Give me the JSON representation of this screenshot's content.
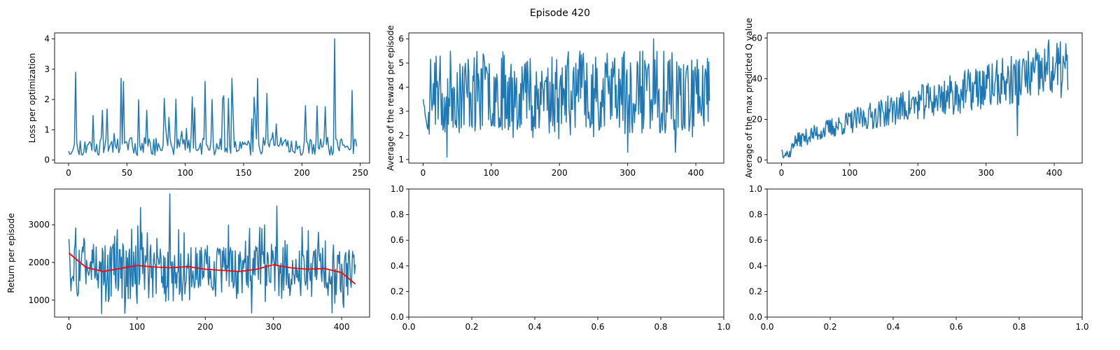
{
  "figure": {
    "title": "Episode 420"
  },
  "chart_data": [
    {
      "type": "line",
      "title": "",
      "xlabel": "",
      "ylabel": "Loss per optimization",
      "xlim": [
        -12,
        258
      ],
      "ylim": [
        -0.1,
        4.2
      ],
      "xticks": [
        0,
        50,
        100,
        150,
        200,
        250
      ],
      "yticks": [
        0,
        1,
        2,
        3,
        4
      ],
      "grid": false,
      "legend": "none",
      "gen": {
        "n": 248,
        "seed": 11,
        "kind": "loss",
        "spikes": [
          [
            6,
            2.9
          ],
          [
            45,
            2.7
          ],
          [
            47,
            2.6
          ],
          [
            117,
            2.6
          ],
          [
            140,
            2.7
          ],
          [
            162,
            2.7
          ],
          [
            228,
            4.0
          ],
          [
            243,
            2.3
          ]
        ]
      },
      "series": [
        {
          "name": "",
          "color": "#1f77b4"
        }
      ]
    },
    {
      "type": "line",
      "title": "",
      "xlabel": "",
      "ylabel": "Average of the reward per episode",
      "xlim": [
        -21,
        441
      ],
      "ylim": [
        0.85,
        6.25
      ],
      "xticks": [
        0,
        100,
        200,
        300,
        400
      ],
      "yticks": [
        1,
        2,
        3,
        4,
        5,
        6
      ],
      "grid": false,
      "legend": "none",
      "gen": {
        "n": 421,
        "seed": 23,
        "kind": "reward",
        "spikes": [
          [
            0,
            3.5
          ],
          [
            35,
            1.1
          ],
          [
            338,
            6.0
          ],
          [
            300,
            1.3
          ],
          [
            370,
            1.3
          ]
        ]
      },
      "series": [
        {
          "name": "",
          "color": "#1f77b4"
        }
      ]
    },
    {
      "type": "line",
      "title": "",
      "xlabel": "",
      "ylabel": "Average of the max predicted Q value",
      "xlim": [
        -21,
        441
      ],
      "ylim": [
        -1.5,
        62.5
      ],
      "xticks": [
        0,
        100,
        200,
        300,
        400
      ],
      "yticks": [
        0,
        20,
        40,
        60
      ],
      "grid": false,
      "legend": "none",
      "gen": {
        "n": 421,
        "seed": 37,
        "kind": "q",
        "spikes": [
          [
            0,
            5
          ],
          [
            392,
            59
          ],
          [
            346,
            12
          ]
        ]
      },
      "series": [
        {
          "name": "",
          "color": "#1f77b4"
        }
      ]
    },
    {
      "type": "line",
      "title": "",
      "xlabel": "",
      "ylabel": "Return per episode",
      "xlim": [
        -21,
        441
      ],
      "ylim": [
        550,
        3950
      ],
      "xticks": [
        0,
        100,
        200,
        300,
        400
      ],
      "yticks": [
        1000,
        2000,
        3000
      ],
      "grid": false,
      "legend": "none",
      "gen": {
        "n": 421,
        "seed": 53,
        "kind": "return",
        "spikes": [
          [
            0,
            2620
          ],
          [
            148,
            3820
          ],
          [
            105,
            3460
          ],
          [
            305,
            3500
          ],
          [
            48,
            640
          ],
          [
            82,
            650
          ],
          [
            268,
            660
          ],
          [
            386,
            660
          ]
        ]
      },
      "series": [
        {
          "name": "",
          "color": "#1f77b4"
        },
        {
          "name": "",
          "color": "#ff0000",
          "smooth_x": [
            0,
            25,
            50,
            75,
            100,
            125,
            150,
            175,
            200,
            225,
            250,
            275,
            300,
            325,
            350,
            375,
            400,
            420
          ],
          "smooth_y": [
            2250,
            1870,
            1760,
            1840,
            1920,
            1880,
            1860,
            1890,
            1820,
            1790,
            1760,
            1820,
            1940,
            1860,
            1820,
            1840,
            1730,
            1430
          ]
        }
      ]
    },
    {
      "type": "line",
      "title": "",
      "xlabel": "",
      "ylabel": "",
      "xlim": [
        0,
        1
      ],
      "ylim": [
        0,
        1
      ],
      "xticks": [
        0,
        0.2,
        0.4,
        0.6,
        0.8,
        1.0
      ],
      "yticks": [
        0,
        0.2,
        0.4,
        0.6,
        0.8,
        1.0
      ],
      "grid": false,
      "legend": "none",
      "series": []
    },
    {
      "type": "line",
      "title": "",
      "xlabel": "",
      "ylabel": "",
      "xlim": [
        0,
        1
      ],
      "ylim": [
        0,
        1
      ],
      "xticks": [
        0,
        0.2,
        0.4,
        0.6,
        0.8,
        1.0
      ],
      "yticks": [
        0,
        0.2,
        0.4,
        0.6,
        0.8,
        1.0
      ],
      "grid": false,
      "legend": "none",
      "series": []
    }
  ]
}
